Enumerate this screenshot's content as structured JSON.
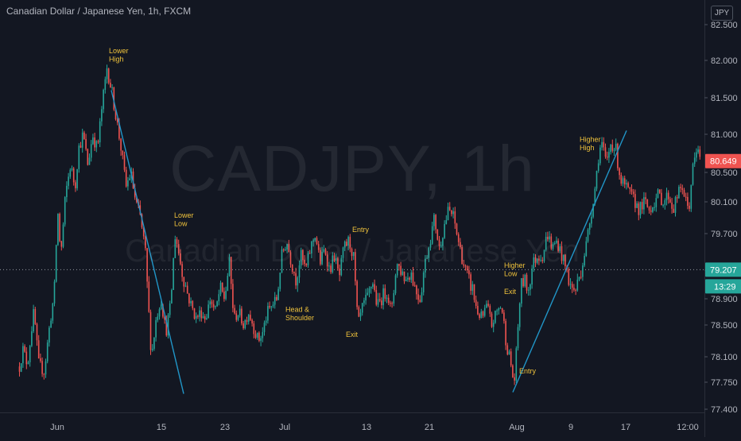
{
  "header": {
    "title": "Canadian Dollar / Japanese Yen, 1h, FXCM",
    "currency": "JPY"
  },
  "watermark": {
    "symbol": "CADJPY, 1h",
    "name": "Canadian Dollar / Japanese Yen"
  },
  "colors": {
    "background": "#131722",
    "up": "#26a69a",
    "down": "#ef5350",
    "annotation": "#f0c33c",
    "trendline": "#2196c8",
    "axis_text": "#b2b5be"
  },
  "chart_data": {
    "type": "candlestick",
    "ylim": [
      77.3,
      82.6
    ],
    "yticks": [
      82.5,
      82.0,
      81.5,
      81.0,
      80.5,
      80.1,
      79.7,
      79.2,
      78.9,
      78.5,
      78.1,
      77.75,
      77.4
    ],
    "ytick_labels": [
      "82.500",
      "82.000",
      "81.500",
      "81.000",
      "80.500",
      "80.100",
      "79.700",
      "79.200",
      "78.900",
      "78.500",
      "78.100",
      "77.750",
      "77.400"
    ],
    "xticks": [
      "Jun",
      "15",
      "23",
      "Jul",
      "13",
      "21",
      "Aug",
      "9",
      "17",
      "12:00"
    ],
    "price_badges": {
      "last": "80.649",
      "crosshair": "79.207",
      "countdown": "13:29"
    },
    "anchors": [
      [
        0,
        77.4
      ],
      [
        6,
        78.0
      ],
      [
        12,
        78.5
      ],
      [
        18,
        78.0
      ],
      [
        22,
        77.85
      ],
      [
        28,
        78.2
      ],
      [
        34,
        78.0
      ],
      [
        42,
        78.7
      ],
      [
        48,
        78.0
      ],
      [
        55,
        77.9
      ],
      [
        62,
        78.5
      ],
      [
        68,
        79.0
      ],
      [
        72,
        80.0
      ],
      [
        76,
        79.4
      ],
      [
        82,
        80.2
      ],
      [
        88,
        80.6
      ],
      [
        94,
        80.3
      ],
      [
        98,
        80.8
      ],
      [
        104,
        81.0
      ],
      [
        110,
        80.6
      ],
      [
        116,
        81.0
      ],
      [
        122,
        80.8
      ],
      [
        128,
        81.4
      ],
      [
        134,
        81.9
      ],
      [
        140,
        81.6
      ],
      [
        146,
        81.2
      ],
      [
        152,
        80.8
      ],
      [
        158,
        80.3
      ],
      [
        164,
        80.5
      ],
      [
        170,
        80.1
      ],
      [
        176,
        79.9
      ],
      [
        182,
        79.5
      ],
      [
        186,
        78.8
      ],
      [
        190,
        78.1
      ],
      [
        196,
        78.6
      ],
      [
        202,
        78.9
      ],
      [
        208,
        78.4
      ],
      [
        214,
        78.8
      ],
      [
        220,
        79.7
      ],
      [
        228,
        79.2
      ],
      [
        234,
        79.0
      ],
      [
        240,
        78.8
      ],
      [
        246,
        78.6
      ],
      [
        252,
        78.7
      ],
      [
        258,
        78.6
      ],
      [
        264,
        78.9
      ],
      [
        270,
        78.7
      ],
      [
        276,
        79.0
      ],
      [
        282,
        78.9
      ],
      [
        288,
        79.3
      ],
      [
        294,
        78.6
      ],
      [
        300,
        78.7
      ],
      [
        306,
        78.5
      ],
      [
        312,
        78.7
      ],
      [
        318,
        78.5
      ],
      [
        324,
        78.3
      ],
      [
        330,
        78.4
      ],
      [
        336,
        78.7
      ],
      [
        342,
        78.8
      ],
      [
        348,
        78.9
      ],
      [
        354,
        79.4
      ],
      [
        360,
        79.6
      ],
      [
        366,
        79.3
      ],
      [
        372,
        79.1
      ],
      [
        378,
        79.4
      ],
      [
        384,
        79.2
      ],
      [
        390,
        79.5
      ],
      [
        396,
        79.7
      ],
      [
        402,
        79.3
      ],
      [
        408,
        79.5
      ],
      [
        414,
        79.2
      ],
      [
        420,
        79.4
      ],
      [
        426,
        79.1
      ],
      [
        432,
        79.5
      ],
      [
        438,
        79.6
      ],
      [
        444,
        79.4
      ],
      [
        450,
        78.5
      ],
      [
        456,
        78.8
      ],
      [
        462,
        78.9
      ],
      [
        468,
        79.1
      ],
      [
        474,
        78.8
      ],
      [
        480,
        78.9
      ],
      [
        486,
        79.0
      ],
      [
        492,
        78.7
      ],
      [
        498,
        79.3
      ],
      [
        504,
        79.2
      ],
      [
        510,
        79.1
      ],
      [
        516,
        79.2
      ],
      [
        522,
        79.0
      ],
      [
        528,
        78.9
      ],
      [
        534,
        79.3
      ],
      [
        540,
        79.6
      ],
      [
        546,
        79.9
      ],
      [
        552,
        79.5
      ],
      [
        558,
        79.8
      ],
      [
        564,
        80.0
      ],
      [
        570,
        79.9
      ],
      [
        576,
        79.6
      ],
      [
        582,
        79.3
      ],
      [
        588,
        79.1
      ],
      [
        594,
        79.0
      ],
      [
        600,
        78.7
      ],
      [
        606,
        78.6
      ],
      [
        612,
        78.8
      ],
      [
        618,
        78.5
      ],
      [
        624,
        78.7
      ],
      [
        630,
        78.8
      ],
      [
        636,
        78.3
      ],
      [
        642,
        78.0
      ],
      [
        646,
        77.7
      ],
      [
        650,
        78.3
      ],
      [
        654,
        79.0
      ],
      [
        658,
        79.1
      ],
      [
        664,
        79.0
      ],
      [
        670,
        79.3
      ],
      [
        676,
        79.4
      ],
      [
        682,
        79.4
      ],
      [
        688,
        79.7
      ],
      [
        694,
        79.5
      ],
      [
        700,
        79.6
      ],
      [
        706,
        79.4
      ],
      [
        712,
        79.2
      ],
      [
        718,
        79.0
      ],
      [
        724,
        79.0
      ],
      [
        730,
        79.2
      ],
      [
        736,
        79.5
      ],
      [
        742,
        79.9
      ],
      [
        748,
        80.3
      ],
      [
        752,
        80.7
      ],
      [
        756,
        80.9
      ],
      [
        762,
        80.6
      ],
      [
        768,
        80.9
      ],
      [
        774,
        80.8
      ],
      [
        780,
        80.4
      ],
      [
        786,
        80.3
      ],
      [
        792,
        80.2
      ],
      [
        798,
        80.1
      ],
      [
        804,
        80.0
      ],
      [
        810,
        80.1
      ],
      [
        816,
        80.0
      ],
      [
        822,
        80.1
      ],
      [
        828,
        80.2
      ],
      [
        834,
        80.1
      ],
      [
        840,
        80.2
      ],
      [
        846,
        80.0
      ],
      [
        852,
        80.2
      ],
      [
        858,
        80.3
      ],
      [
        862,
        80.1
      ],
      [
        866,
        80.0
      ],
      [
        870,
        80.5
      ],
      [
        874,
        80.7
      ],
      [
        878,
        80.8
      ],
      [
        882,
        80.65
      ]
    ],
    "trendlines": [
      {
        "from": [
          140,
          81.6
        ],
        "to": [
          231,
          77.6
        ]
      },
      {
        "from": [
          645,
          77.62
        ],
        "to": [
          788,
          81.05
        ]
      }
    ],
    "horizontal_line": {
      "y": 79.207,
      "style": "dotted"
    },
    "annotations": [
      {
        "text": "Lower High",
        "x": 137,
        "y": 82.1,
        "align": "start"
      },
      {
        "text": "Lower Low",
        "x": 219,
        "y": 79.9,
        "align": "start"
      },
      {
        "text": "Head & Shoulder",
        "x": 359,
        "y": 78.7,
        "align": "start"
      },
      {
        "text": "Entry",
        "x": 443,
        "y": 79.72,
        "align": "start"
      },
      {
        "text": "Exit",
        "x": 435,
        "y": 78.35,
        "align": "start"
      },
      {
        "text": "Higher Low",
        "x": 634,
        "y": 79.23,
        "align": "start"
      },
      {
        "text": "Exit",
        "x": 634,
        "y": 78.95,
        "align": "start"
      },
      {
        "text": "Entry",
        "x": 653,
        "y": 77.87,
        "align": "start"
      },
      {
        "text": "Higher High",
        "x": 729,
        "y": 80.9,
        "align": "start"
      }
    ]
  }
}
